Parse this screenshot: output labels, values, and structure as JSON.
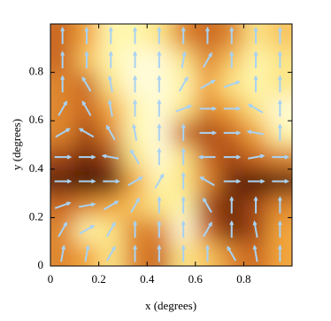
{
  "chart_data": {
    "type": "heatmap_vector",
    "xlabel": "x (degrees)",
    "ylabel": "y (degrees)",
    "xlim": [
      0,
      1
    ],
    "ylim": [
      0,
      1
    ],
    "xticks": [
      0,
      0.2,
      0.4,
      0.6,
      0.8
    ],
    "yticks": [
      0,
      0.2,
      0.4,
      0.6,
      0.8
    ],
    "colormap": [
      "#ffffff",
      "#fff59a",
      "#f2a43a",
      "#c0581a",
      "#3a0a02"
    ],
    "vector_color": "#a9d2f2",
    "z": [
      [
        0.6,
        0.5,
        0.3,
        0.6,
        0.7,
        0.3,
        0.4,
        0.6,
        0.7,
        0.5
      ],
      [
        0.6,
        0.2,
        0.3,
        0.6,
        0.6,
        0.1,
        0.7,
        0.9,
        0.8,
        0.5
      ],
      [
        0.7,
        0.6,
        0.5,
        0.4,
        0.3,
        0.2,
        0.8,
        0.9,
        0.8,
        0.6
      ],
      [
        0.95,
        1,
        0.95,
        0.5,
        0.2,
        0.3,
        0.6,
        0.9,
        1,
        0.95
      ],
      [
        0.8,
        0.9,
        0.8,
        0.3,
        0.1,
        0.3,
        0.7,
        0.8,
        0.7,
        0.6
      ],
      [
        0.6,
        0.8,
        0.6,
        0.2,
        0.1,
        0.7,
        0.8,
        0.7,
        0.5,
        0.2
      ],
      [
        0.6,
        0.7,
        0.5,
        0.2,
        0.1,
        0.3,
        0.6,
        0.5,
        0.3,
        0.1
      ],
      [
        0.6,
        0.7,
        0.3,
        0.1,
        0.1,
        0.2,
        0.5,
        0.3,
        0.2,
        0.3
      ],
      [
        0.7,
        0.4,
        0.2,
        0.1,
        0.1,
        0.3,
        0.6,
        0.4,
        0.2,
        0.3
      ],
      [
        0.7,
        0.5,
        0.2,
        0.2,
        0.3,
        0.6,
        0.7,
        0.6,
        0.3,
        0.4
      ]
    ],
    "vector_angles": [
      [
        80,
        80,
        60,
        90,
        90,
        90,
        90,
        120,
        100,
        90
      ],
      [
        60,
        30,
        60,
        90,
        90,
        90,
        60,
        90,
        100,
        90
      ],
      [
        20,
        10,
        30,
        60,
        90,
        90,
        120,
        90,
        90,
        90
      ],
      [
        0,
        0,
        0,
        30,
        60,
        90,
        150,
        0,
        0,
        0
      ],
      [
        0,
        0,
        170,
        120,
        90,
        90,
        180,
        0,
        10,
        0
      ],
      [
        30,
        150,
        120,
        100,
        90,
        90,
        0,
        0,
        170,
        90
      ],
      [
        60,
        120,
        100,
        90,
        90,
        20,
        0,
        0,
        150,
        90
      ],
      [
        90,
        120,
        100,
        90,
        90,
        60,
        30,
        20,
        90,
        90
      ],
      [
        90,
        90,
        90,
        90,
        90,
        80,
        60,
        90,
        90,
        90
      ],
      [
        90,
        90,
        90,
        90,
        90,
        90,
        90,
        90,
        90,
        90
      ]
    ]
  }
}
